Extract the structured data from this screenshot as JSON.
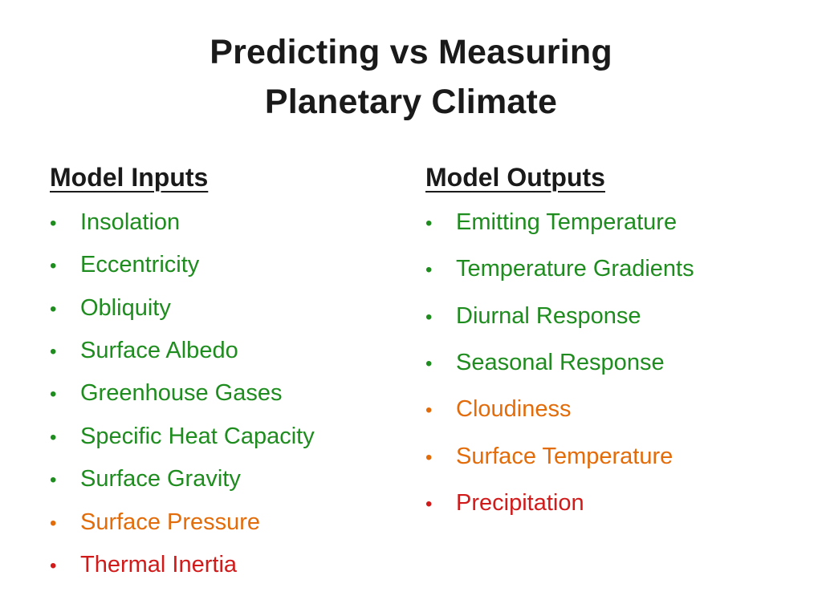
{
  "slide": {
    "title_line1": "Predicting vs Measuring",
    "title_line2": "Planetary Climate",
    "bullet_glyph": "•",
    "colors": {
      "green": "#1e8c1e",
      "orange": "#e36c0a",
      "red": "#d11a1a"
    },
    "columns": [
      {
        "heading": "Model Inputs",
        "items": [
          {
            "label": "Insolation",
            "color": "green"
          },
          {
            "label": "Eccentricity",
            "color": "green"
          },
          {
            "label": "Obliquity",
            "color": "green"
          },
          {
            "label": "Surface Albedo",
            "color": "green"
          },
          {
            "label": "Greenhouse Gases",
            "color": "green"
          },
          {
            "label": "Specific Heat Capacity",
            "color": "green"
          },
          {
            "label": "Surface Gravity",
            "color": "green"
          },
          {
            "label": "Surface Pressure",
            "color": "orange"
          },
          {
            "label": "Thermal Inertia",
            "color": "red"
          }
        ]
      },
      {
        "heading": "Model Outputs",
        "items": [
          {
            "label": "Emitting Temperature",
            "color": "green"
          },
          {
            "label": "Temperature Gradients",
            "color": "green"
          },
          {
            "label": "Diurnal Response",
            "color": "green"
          },
          {
            "label": "Seasonal Response",
            "color": "green"
          },
          {
            "label": "Cloudiness",
            "color": "orange"
          },
          {
            "label": "Surface Temperature",
            "color": "orange"
          },
          {
            "label": "Precipitation",
            "color": "red"
          }
        ]
      }
    ]
  }
}
